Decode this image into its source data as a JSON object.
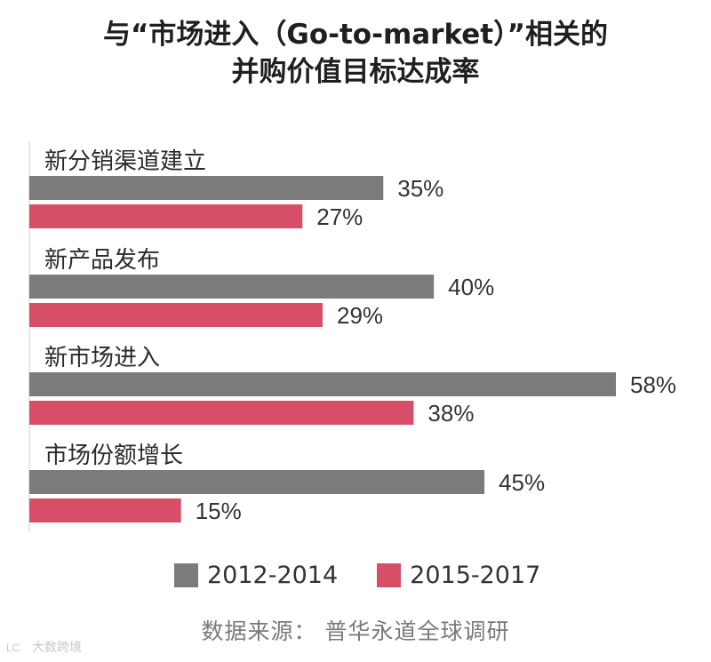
{
  "title": {
    "line1": "与“市场进入（Go-to-market）”相关的",
    "line2": "并购价值目标达成率"
  },
  "colors": {
    "series_2012_2014": "#7b7b7b",
    "series_2015_2017": "#d64f66",
    "axis": "#cfcfcf"
  },
  "legend": {
    "items": [
      {
        "label": "2012-2014"
      },
      {
        "label": "2015-2017"
      }
    ]
  },
  "source": "数据来源： 普华永道全球调研",
  "watermark": {
    "text": "大数跨境",
    "logo_text": "LC"
  },
  "chart_data": {
    "type": "bar",
    "orientation": "horizontal",
    "categories": [
      "新分销渠道建立",
      "新产品发布",
      "新市场进入",
      "市场份额增长"
    ],
    "series": [
      {
        "name": "2012-2014",
        "values": [
          35,
          40,
          58,
          45
        ],
        "labels": [
          "35%",
          "40%",
          "58%",
          "45%"
        ]
      },
      {
        "name": "2015-2017",
        "values": [
          27,
          29,
          38,
          15
        ],
        "labels": [
          "27%",
          "29%",
          "38%",
          "15%"
        ]
      }
    ],
    "value_unit": "%",
    "xlim": [
      0,
      58
    ],
    "legend_position": "bottom",
    "grid": false
  }
}
